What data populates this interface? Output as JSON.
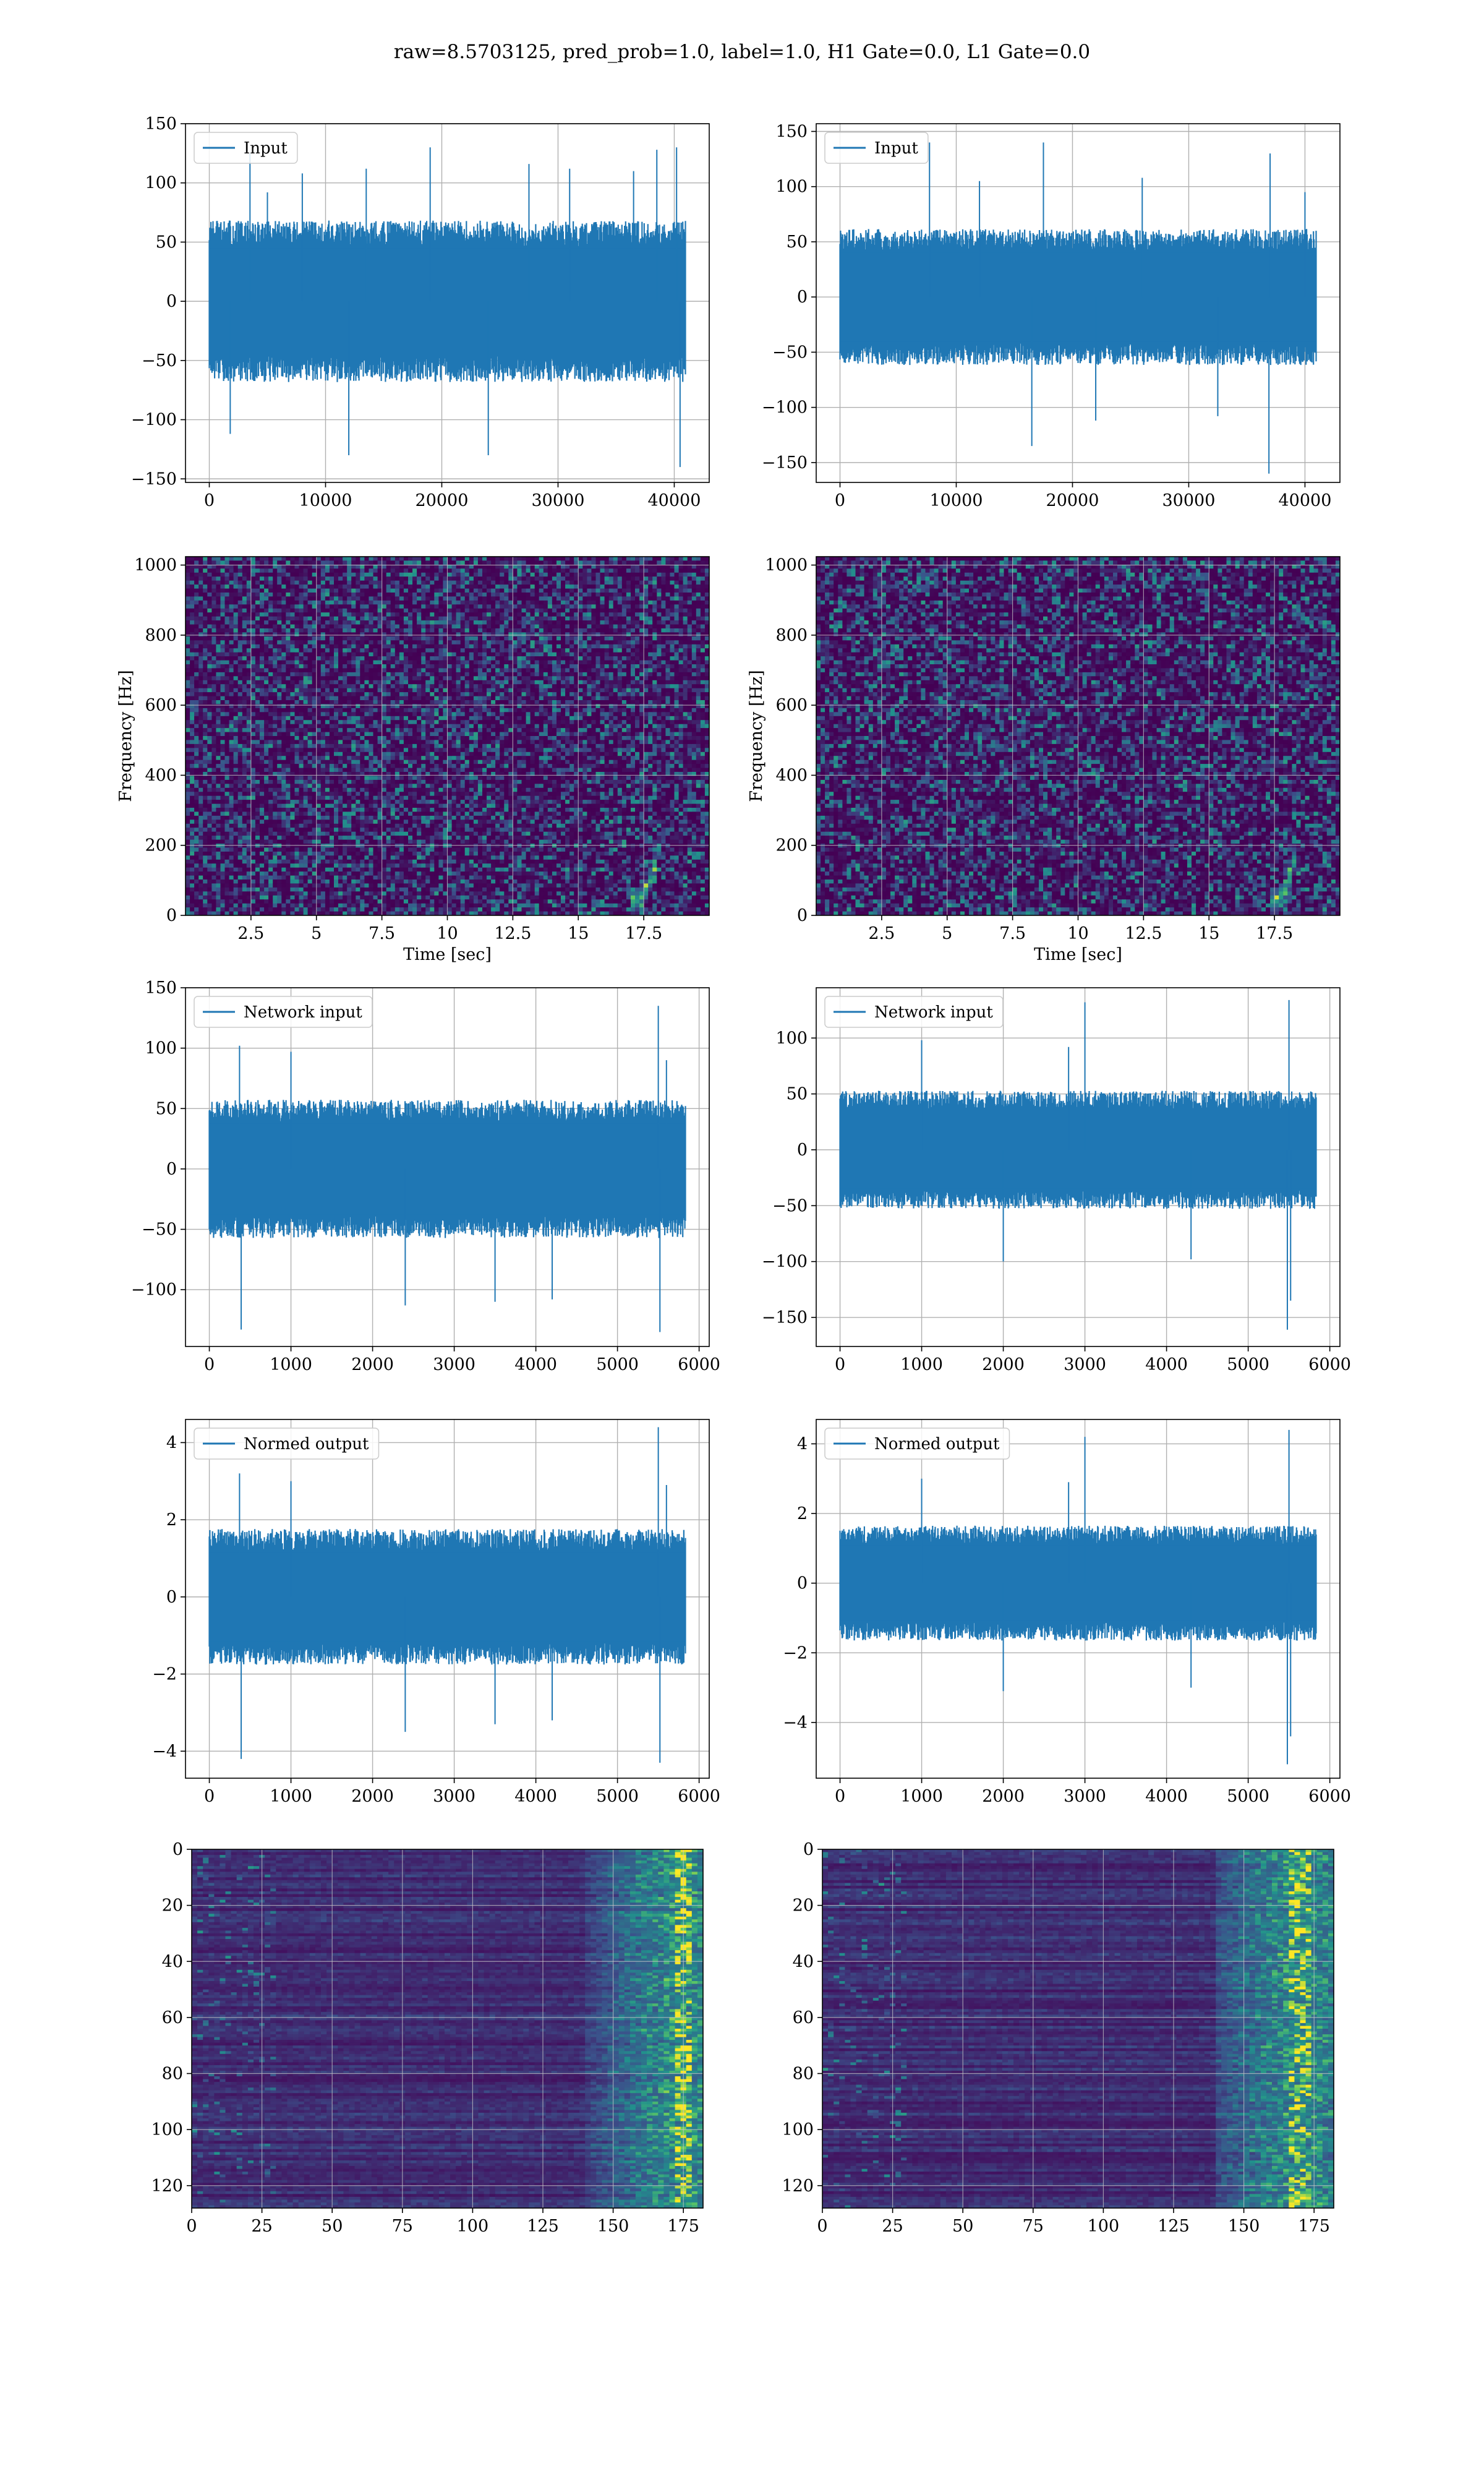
{
  "figure": {
    "title": "raw=8.5703125, pred_prob=1.0, label=1.0, H1 Gate=0.0, L1 Gate=0.0"
  },
  "colors": {
    "signal": "#1f77b4",
    "grid": "#b0b0b0",
    "heatmap_low": "#440154",
    "heatmap_mid": "#21918c",
    "heatmap_high": "#fde725"
  },
  "chart_data": [
    {
      "id": "input-h1",
      "type": "line",
      "legend": [
        "Input"
      ],
      "legend_loc": "upper left",
      "x_range": [
        0,
        40960
      ],
      "xlim": [
        -2048,
        43008
      ],
      "ylim": [
        -153,
        150
      ],
      "xticks": [
        0,
        10000,
        20000,
        30000,
        40000
      ],
      "yticks": [
        -150,
        -100,
        -50,
        0,
        50,
        100,
        150
      ],
      "band": [
        -62,
        62
      ],
      "grid": true,
      "spikes": [
        [
          3500,
          125
        ],
        [
          5000,
          92
        ],
        [
          8000,
          108
        ],
        [
          12000,
          -130
        ],
        [
          13500,
          112
        ],
        [
          19000,
          130
        ],
        [
          24000,
          -130
        ],
        [
          27500,
          116
        ],
        [
          31000,
          112
        ],
        [
          36500,
          110
        ],
        [
          38500,
          128
        ],
        [
          40200,
          130
        ],
        [
          40500,
          -140
        ],
        [
          1800,
          -112
        ]
      ]
    },
    {
      "id": "input-l1",
      "type": "line",
      "legend": [
        "Input"
      ],
      "legend_loc": "upper left",
      "x_range": [
        0,
        40960
      ],
      "xlim": [
        -2048,
        43008
      ],
      "ylim": [
        -168,
        157
      ],
      "xticks": [
        0,
        10000,
        20000,
        30000,
        40000
      ],
      "yticks": [
        -150,
        -100,
        -50,
        0,
        50,
        100,
        150
      ],
      "band": [
        -56,
        56
      ],
      "grid": true,
      "spikes": [
        [
          7700,
          140
        ],
        [
          17500,
          140
        ],
        [
          37000,
          130
        ],
        [
          36900,
          -160
        ],
        [
          16500,
          -135
        ],
        [
          40000,
          95
        ],
        [
          26000,
          108
        ],
        [
          12000,
          105
        ],
        [
          22000,
          -112
        ],
        [
          32500,
          -108
        ]
      ]
    },
    {
      "id": "spectrogram-h1",
      "type": "heatmap",
      "xlabel": "Time [sec]",
      "ylabel": "Frequency [Hz]",
      "xlim": [
        0,
        20
      ],
      "ylim": [
        0,
        1024
      ],
      "xticks": [
        2.5,
        5.0,
        7.5,
        10.0,
        12.5,
        15.0,
        17.5
      ],
      "yticks": [
        0,
        200,
        400,
        600,
        800,
        1000
      ],
      "grid": true,
      "chirp": {
        "t_start": 17.0,
        "t_end": 18.1,
        "f_low": 40,
        "f_high": 200
      }
    },
    {
      "id": "spectrogram-l1",
      "type": "heatmap",
      "xlabel": "Time [sec]",
      "ylabel": "Frequency [Hz]",
      "xlim": [
        0,
        20
      ],
      "ylim": [
        0,
        1024
      ],
      "xticks": [
        2.5,
        5.0,
        7.5,
        10.0,
        12.5,
        15.0,
        17.5
      ],
      "yticks": [
        0,
        200,
        400,
        600,
        800,
        1000
      ],
      "grid": true,
      "chirp": {
        "t_start": 17.4,
        "t_end": 18.4,
        "f_low": 40,
        "f_high": 220
      }
    },
    {
      "id": "network-input-h1",
      "type": "line",
      "legend": [
        "Network input"
      ],
      "legend_loc": "upper left",
      "x_range": [
        0,
        5832
      ],
      "xlim": [
        -292,
        6124
      ],
      "ylim": [
        -147,
        150
      ],
      "xticks": [
        0,
        1000,
        2000,
        3000,
        4000,
        5000,
        6000
      ],
      "yticks": [
        -100,
        -50,
        0,
        50,
        100,
        150
      ],
      "band": [
        -52,
        52
      ],
      "grid": true,
      "spikes": [
        [
          390,
          -133
        ],
        [
          370,
          102
        ],
        [
          5500,
          135
        ],
        [
          5520,
          -135
        ],
        [
          2400,
          -113
        ],
        [
          3500,
          -110
        ],
        [
          4200,
          -108
        ],
        [
          1000,
          97
        ],
        [
          5600,
          90
        ]
      ]
    },
    {
      "id": "network-input-l1",
      "type": "line",
      "legend": [
        "Network input"
      ],
      "legend_loc": "upper left",
      "x_range": [
        0,
        5832
      ],
      "xlim": [
        -292,
        6124
      ],
      "ylim": [
        -176,
        145
      ],
      "xticks": [
        0,
        1000,
        2000,
        3000,
        4000,
        5000,
        6000
      ],
      "yticks": [
        -150,
        -100,
        -50,
        0,
        50,
        100
      ],
      "band": [
        -48,
        48
      ],
      "grid": true,
      "spikes": [
        [
          3000,
          132
        ],
        [
          5500,
          134
        ],
        [
          5480,
          -161
        ],
        [
          5520,
          -135
        ],
        [
          2000,
          -100
        ],
        [
          1000,
          98
        ],
        [
          4300,
          -98
        ],
        [
          2800,
          92
        ]
      ]
    },
    {
      "id": "normed-output-h1",
      "type": "line",
      "legend": [
        "Normed output"
      ],
      "legend_loc": "upper left",
      "x_range": [
        0,
        5832
      ],
      "xlim": [
        -292,
        6124
      ],
      "ylim": [
        -4.7,
        4.6
      ],
      "xticks": [
        0,
        1000,
        2000,
        3000,
        4000,
        5000,
        6000
      ],
      "yticks": [
        -4,
        -2,
        0,
        2,
        4
      ],
      "band": [
        -1.6,
        1.6
      ],
      "grid": true,
      "spikes": [
        [
          390,
          -4.2
        ],
        [
          370,
          3.2
        ],
        [
          5500,
          4.4
        ],
        [
          5520,
          -4.3
        ],
        [
          2400,
          -3.5
        ],
        [
          3500,
          -3.3
        ],
        [
          4200,
          -3.2
        ],
        [
          1000,
          3.0
        ],
        [
          5600,
          2.9
        ]
      ]
    },
    {
      "id": "normed-output-l1",
      "type": "line",
      "legend": [
        "Normed output"
      ],
      "legend_loc": "upper left",
      "x_range": [
        0,
        5832
      ],
      "xlim": [
        -292,
        6124
      ],
      "ylim": [
        -5.6,
        4.7
      ],
      "xticks": [
        0,
        1000,
        2000,
        3000,
        4000,
        5000,
        6000
      ],
      "yticks": [
        -4,
        -2,
        0,
        2,
        4
      ],
      "band": [
        -1.5,
        1.5
      ],
      "grid": true,
      "spikes": [
        [
          3000,
          4.2
        ],
        [
          5500,
          4.4
        ],
        [
          5480,
          -5.2
        ],
        [
          5520,
          -4.4
        ],
        [
          2000,
          -3.1
        ],
        [
          1000,
          3.0
        ],
        [
          4300,
          -3.0
        ],
        [
          2800,
          2.9
        ]
      ]
    },
    {
      "id": "feature-map-h1",
      "type": "heatmap",
      "xlim": [
        0,
        182
      ],
      "ylim": [
        128,
        0
      ],
      "xticks": [
        0,
        25,
        50,
        75,
        100,
        125,
        150,
        175
      ],
      "yticks": [
        0,
        20,
        40,
        60,
        80,
        100,
        120
      ],
      "grid": true,
      "hot_column": 175
    },
    {
      "id": "feature-map-l1",
      "type": "heatmap",
      "xlim": [
        0,
        182
      ],
      "ylim": [
        128,
        0
      ],
      "xticks": [
        0,
        25,
        50,
        75,
        100,
        125,
        150,
        175
      ],
      "yticks": [
        0,
        20,
        40,
        60,
        80,
        100,
        120
      ],
      "grid": true,
      "hot_column": 170
    }
  ]
}
